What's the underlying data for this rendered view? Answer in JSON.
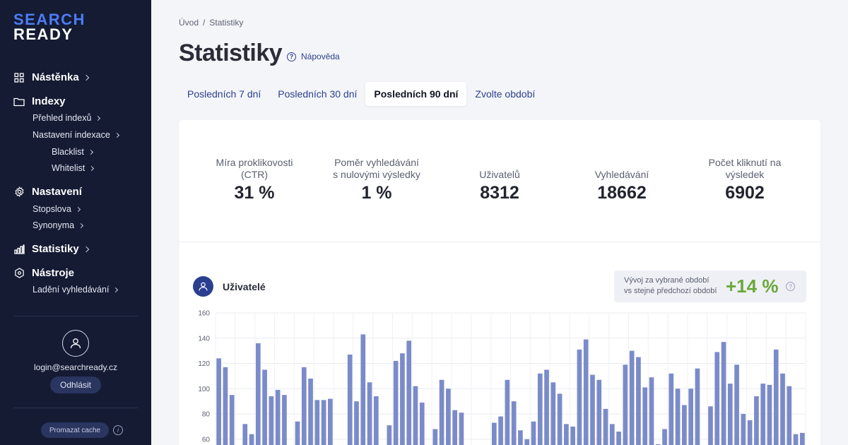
{
  "sidebar": {
    "logo_line1": "SEARCH",
    "logo_line2": "READY",
    "sections": [
      {
        "label": "Nástěnka",
        "icon": "dashboard-icon"
      },
      {
        "label": "Indexy",
        "icon": "folder-icon",
        "items": [
          {
            "label": "Přehled indexů"
          },
          {
            "label": "Nastavení indexace",
            "children": [
              {
                "label": "Blacklist"
              },
              {
                "label": "Whitelist"
              }
            ]
          }
        ]
      },
      {
        "label": "Nastavení",
        "icon": "gear-icon",
        "items": [
          {
            "label": "Stopslova"
          },
          {
            "label": "Synonyma"
          }
        ]
      },
      {
        "label": "Statistiky",
        "icon": "bar-chart-icon"
      },
      {
        "label": "Nástroje",
        "icon": "hexagon-icon",
        "items": [
          {
            "label": "Ladění vyhledávání"
          }
        ]
      }
    ],
    "user_email": "login@searchready.cz",
    "logout_label": "Odhlásit",
    "cache_label": "Promazat cache",
    "info_glyph": "i"
  },
  "breadcrumb": {
    "home": "Úvod",
    "sep": "/",
    "current": "Statistiky"
  },
  "page_title": "Statistiky",
  "help_label": "Nápověda",
  "help_glyph": "?",
  "tabs": [
    {
      "label": "Posledních 7 dní",
      "active": false
    },
    {
      "label": "Posledních 30 dní",
      "active": false
    },
    {
      "label": "Posledních 90 dní",
      "active": true
    },
    {
      "label": "Zvolte období",
      "active": false
    }
  ],
  "stats": [
    {
      "label": "Míra proklikovosti (CTR)",
      "value": "31 %"
    },
    {
      "label": "Poměr vyhledávání s nulovými výsledky",
      "value": "1 %"
    },
    {
      "label": "Uživatelů",
      "value": "8312"
    },
    {
      "label": "Vyhledávání",
      "value": "18662"
    },
    {
      "label": "Počet kliknutí na výsledek",
      "value": "6902"
    }
  ],
  "chart_section": {
    "title": "Uživatelé",
    "trend_desc_line1": "Vývoj za vybrané období",
    "trend_desc_line2": "vs stejné předchozí období",
    "trend_value": "+14 %",
    "trend_help_glyph": "?"
  },
  "colors": {
    "accent": "#2a3f8f",
    "bar": "#7b8bc9",
    "positive": "#6aa83a",
    "sidebar_bg": "#141b33"
  },
  "chart_data": {
    "type": "bar",
    "title": "",
    "xlabel": "",
    "ylabel": "",
    "ylim": [
      50,
      160
    ],
    "yticks": [
      60,
      80,
      100,
      120,
      140,
      160
    ],
    "grid": true,
    "series": [
      {
        "values": [
          124,
          117,
          95,
          null,
          72,
          64,
          136,
          115,
          94,
          99,
          95,
          null,
          74,
          117,
          108,
          91,
          91,
          92,
          null,
          null,
          127,
          90,
          143,
          105,
          94,
          null,
          71,
          122,
          128,
          138,
          102,
          89,
          null,
          68,
          107,
          100,
          83,
          81,
          null,
          null,
          null,
          null,
          73,
          78,
          107,
          90,
          67,
          60,
          74,
          112,
          115,
          105,
          96,
          72,
          70,
          131,
          139,
          111,
          107,
          84,
          72,
          66,
          119,
          130,
          125,
          101,
          109,
          56,
          68,
          112,
          100,
          87,
          100,
          116,
          null,
          86,
          129,
          137,
          104,
          119,
          80,
          75,
          94,
          104,
          103,
          131,
          112,
          102,
          64,
          65
        ]
      }
    ]
  }
}
